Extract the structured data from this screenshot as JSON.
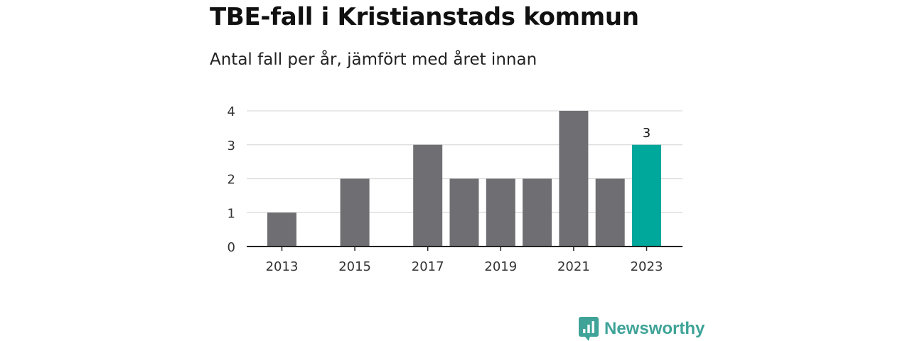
{
  "chart_data": {
    "type": "bar",
    "title": "TBE-fall i Kristianstads kommun",
    "subtitle": "Antal fall per år, jämfört med året innan",
    "categories": [
      "2013",
      "2014",
      "2015",
      "2016",
      "2017",
      "2018",
      "2019",
      "2020",
      "2021",
      "2022",
      "2023"
    ],
    "values": [
      1,
      0,
      2,
      0,
      3,
      2,
      2,
      2,
      4,
      2,
      3
    ],
    "x_tick_labels": [
      "2013",
      "2015",
      "2017",
      "2019",
      "2021",
      "2023"
    ],
    "y_ticks": [
      "0",
      "1",
      "2",
      "3",
      "4"
    ],
    "ylim": [
      0,
      4
    ],
    "grid": true,
    "highlight_category": "2023",
    "highlight_label": "3",
    "colors": {
      "bar": "#6f6e73",
      "highlight": "#00a79b",
      "grid": "#dcdcdc",
      "axis": "#222222"
    }
  },
  "brand": {
    "name": "Newsworthy",
    "icon": "newsworthy-logo-icon",
    "color": "#3fa398"
  }
}
